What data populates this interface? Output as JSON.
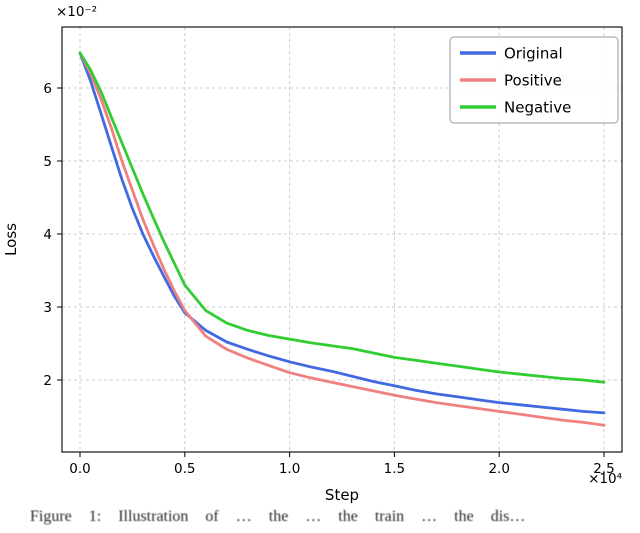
{
  "figure": {
    "caption": "Figure 1: Illustration of … the … the train … the dis…"
  },
  "chart_data": {
    "type": "line",
    "title": "",
    "xlabel": "Step",
    "ylabel": "Loss",
    "x_offset_text": "×10⁴",
    "y_offset_text": "×10⁻²",
    "x_ticks": [
      0.0,
      0.5,
      1.0,
      1.5,
      2.0,
      2.5
    ],
    "x_tick_labels": [
      "0.0",
      "0.5",
      "1.0",
      "1.5",
      "2.0",
      "2.5"
    ],
    "y_ticks": [
      2,
      3,
      4,
      5,
      6
    ],
    "y_tick_labels": [
      "2",
      "3",
      "4",
      "5",
      "6"
    ],
    "xlim": [
      -0.09,
      2.59
    ],
    "ylim": [
      1.01,
      6.84
    ],
    "grid": true,
    "grid_style": "dashed",
    "legend_position": "upper right",
    "x": [
      0,
      0.05,
      0.1,
      0.15,
      0.2,
      0.25,
      0.3,
      0.35,
      0.4,
      0.45,
      0.5,
      0.6,
      0.7,
      0.8,
      0.9,
      1.0,
      1.1,
      1.2,
      1.3,
      1.4,
      1.5,
      1.6,
      1.7,
      1.8,
      1.9,
      2.0,
      2.1,
      2.2,
      2.3,
      2.4,
      2.5
    ],
    "series": [
      {
        "name": "Original",
        "color": "#4169e1",
        "values": [
          6.48,
          6.1,
          5.65,
          5.2,
          4.75,
          4.35,
          4.0,
          3.7,
          3.42,
          3.15,
          2.92,
          2.68,
          2.52,
          2.42,
          2.33,
          2.25,
          2.18,
          2.12,
          2.05,
          1.98,
          1.92,
          1.86,
          1.81,
          1.77,
          1.73,
          1.69,
          1.66,
          1.63,
          1.6,
          1.57,
          1.55
        ]
      },
      {
        "name": "Positive",
        "color": "#f08080",
        "values": [
          6.48,
          6.2,
          5.85,
          5.45,
          5.0,
          4.6,
          4.2,
          3.85,
          3.52,
          3.22,
          2.95,
          2.6,
          2.42,
          2.3,
          2.2,
          2.1,
          2.03,
          1.97,
          1.91,
          1.85,
          1.79,
          1.74,
          1.69,
          1.65,
          1.61,
          1.57,
          1.53,
          1.49,
          1.45,
          1.42,
          1.38
        ]
      },
      {
        "name": "Negative",
        "color": "#32cd32",
        "values": [
          6.48,
          6.25,
          5.95,
          5.6,
          5.25,
          4.9,
          4.55,
          4.22,
          3.9,
          3.6,
          3.3,
          2.95,
          2.78,
          2.68,
          2.61,
          2.56,
          2.51,
          2.47,
          2.43,
          2.37,
          2.31,
          2.27,
          2.23,
          2.19,
          2.15,
          2.11,
          2.08,
          2.05,
          2.02,
          2.0,
          1.97
        ]
      }
    ]
  }
}
